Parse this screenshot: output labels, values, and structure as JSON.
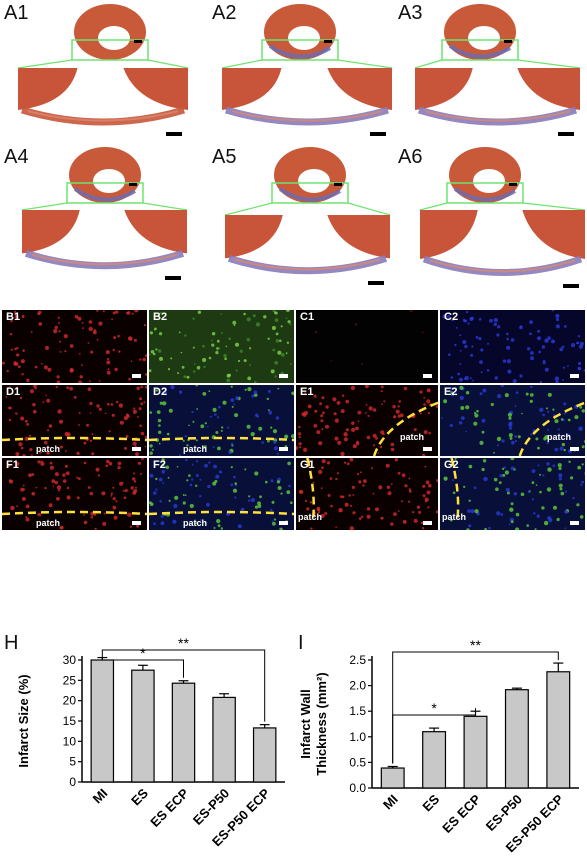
{
  "histology": {
    "panels": [
      {
        "label": "A1"
      },
      {
        "label": "A2"
      },
      {
        "label": "A3"
      },
      {
        "label": "A4"
      },
      {
        "label": "A5"
      },
      {
        "label": "A6"
      }
    ]
  },
  "micrographs": {
    "patch_label": "patch",
    "panels": [
      {
        "label": "B1",
        "channel": "red"
      },
      {
        "label": "B2",
        "channel": "green"
      },
      {
        "label": "C1",
        "channel": "dark"
      },
      {
        "label": "C2",
        "channel": "blue"
      },
      {
        "label": "D1",
        "channel": "red",
        "patch": true
      },
      {
        "label": "D2",
        "channel": "merge",
        "patch": true
      },
      {
        "label": "E1",
        "channel": "red",
        "patch": true
      },
      {
        "label": "E2",
        "channel": "merge",
        "patch": true
      },
      {
        "label": "F1",
        "channel": "red",
        "patch": true
      },
      {
        "label": "F2",
        "channel": "merge",
        "patch": true
      },
      {
        "label": "G1",
        "channel": "red",
        "patch": true
      },
      {
        "label": "G2",
        "channel": "merge",
        "patch": true
      }
    ]
  },
  "chart_data": [
    {
      "panel_label": "H",
      "type": "bar",
      "categories": [
        "MI",
        "ES",
        "ES ECP",
        "ES-P50",
        "ES-P50 ECP"
      ],
      "values": [
        30.0,
        27.5,
        24.3,
        20.8,
        13.3
      ],
      "errors": [
        0.6,
        1.2,
        0.6,
        0.9,
        0.8
      ],
      "ylabel": "Infarct Size (%)",
      "ylim": [
        0,
        30
      ],
      "yticks": [
        "0",
        "5",
        "10",
        "15",
        "20",
        "25",
        "30"
      ],
      "significance": [
        {
          "from": "MI",
          "to": "ES ECP",
          "text": "*"
        },
        {
          "from": "MI",
          "to": "ES-P50 ECP",
          "text": "**"
        }
      ],
      "bar_color": "#c8c8c8"
    },
    {
      "panel_label": "I",
      "type": "bar",
      "categories": [
        "MI",
        "ES",
        "ES ECP",
        "ES-P50",
        "ES-P50 ECP"
      ],
      "values": [
        0.39,
        1.1,
        1.4,
        1.92,
        2.27
      ],
      "errors": [
        0.03,
        0.07,
        0.1,
        0.03,
        0.17
      ],
      "ylabel": "Infarct Wall\nThickness (mm²)",
      "ylabel_lines": [
        "Infarct Wall",
        "Thickness (mm²)"
      ],
      "ylim": [
        0,
        2.5
      ],
      "yticks": [
        "0.0",
        "0.5",
        "1.0",
        "1.5",
        "2.0",
        "2.5"
      ],
      "significance": [
        {
          "from": "MI",
          "to": "ES ECP",
          "text": "*"
        },
        {
          "from": "MI",
          "to": "ES-P50 ECP",
          "text": "**"
        }
      ],
      "bar_color": "#c8c8c8"
    }
  ]
}
